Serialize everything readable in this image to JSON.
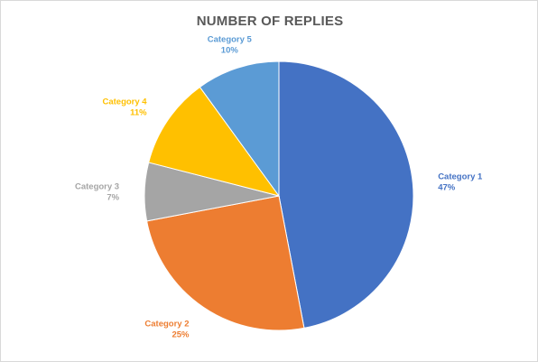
{
  "chart_data": {
    "type": "pie",
    "title": "NUMBER OF REPLIES",
    "slices": [
      {
        "label": "Category 1",
        "value": 47,
        "value_label": "47%",
        "color": "#4472c4"
      },
      {
        "label": "Category 2",
        "value": 25,
        "value_label": "25%",
        "color": "#ed7d31"
      },
      {
        "label": "Category 3",
        "value": 7,
        "value_label": "7%",
        "color": "#a5a5a5"
      },
      {
        "label": "Category 4",
        "value": 11,
        "value_label": "11%",
        "color": "#ffc000"
      },
      {
        "label": "Category 5",
        "value": 10,
        "value_label": "10%",
        "color": "#5b9bd5"
      }
    ],
    "start_angle": "12 o'clock",
    "direction": "clockwise",
    "legend": "none",
    "data_labels": "outside"
  }
}
